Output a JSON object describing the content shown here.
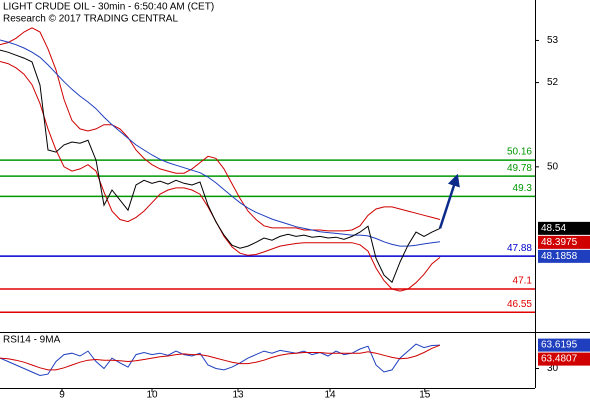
{
  "chart_data": [
    {
      "type": "line",
      "title": "LIGHT CRUDE OIL - 30min - 6:50:40 AM (CET)",
      "subtitle": "Research © 2017 TRADING CENTRAL",
      "x": [
        0,
        1,
        2,
        3,
        4,
        5,
        6,
        7,
        8,
        9,
        10,
        11,
        12,
        13,
        14,
        15,
        16,
        17,
        18,
        19,
        20,
        21,
        22,
        23,
        24,
        25,
        26,
        27,
        28,
        29,
        30,
        31,
        32,
        33,
        34,
        35,
        36,
        37,
        38,
        39,
        40,
        41,
        42,
        43,
        44,
        45,
        46,
        47,
        48,
        49,
        50,
        51,
        52,
        53,
        54,
        55
      ],
      "xlim": [
        0,
        66.875
      ],
      "xticks": [
        {
          "value": 7.75,
          "label": "9"
        },
        {
          "value": 19,
          "label": "10"
        },
        {
          "value": 29.75,
          "label": "13"
        },
        {
          "value": 41.25,
          "label": "14"
        },
        {
          "value": 53.1,
          "label": "15"
        }
      ],
      "ylim": [
        46.08,
        53.96
      ],
      "yticks": [
        53,
        52,
        50
      ],
      "series": [
        {
          "color": "#d00000",
          "values": [
            52.9,
            52.95,
            53.05,
            53.2,
            53.3,
            53.2,
            52.8,
            52.3,
            51.6,
            51.1,
            50.9,
            50.85,
            50.9,
            51.0,
            51.0,
            50.9,
            50.7,
            50.4,
            50.2,
            50.05,
            49.95,
            49.9,
            49.85,
            49.85,
            49.95,
            50.1,
            50.25,
            50.2,
            49.95,
            49.6,
            49.25,
            48.95,
            48.75,
            48.6,
            48.55,
            48.55,
            48.55,
            48.55,
            48.5,
            48.5,
            48.5,
            48.48,
            48.48,
            48.48,
            48.5,
            48.6,
            48.85,
            49.0,
            49.05,
            49.05,
            49.0,
            48.95,
            48.9,
            48.85,
            48.8,
            48.75
          ]
        },
        {
          "color": "#d00000",
          "values": [
            52.5,
            52.45,
            52.35,
            52.2,
            51.95,
            51.5,
            50.9,
            50.4,
            50.0,
            49.9,
            49.95,
            50.05,
            49.9,
            49.4,
            48.95,
            48.75,
            48.7,
            48.8,
            48.95,
            49.15,
            49.35,
            49.45,
            49.5,
            49.5,
            49.45,
            49.35,
            49.05,
            48.7,
            48.35,
            48.1,
            47.95,
            47.9,
            47.92,
            47.98,
            48.05,
            48.12,
            48.15,
            48.18,
            48.2,
            48.2,
            48.2,
            48.2,
            48.2,
            48.2,
            48.2,
            48.15,
            48.0,
            47.6,
            47.3,
            47.1,
            47.05,
            47.1,
            47.25,
            47.45,
            47.7,
            47.85
          ]
        },
        {
          "color": "#1f3fbf",
          "values": [
            53.01,
            52.96,
            52.9,
            52.82,
            52.72,
            52.6,
            52.42,
            52.22,
            52.02,
            51.84,
            51.68,
            51.54,
            51.38,
            51.18,
            51.0,
            50.84,
            50.68,
            50.52,
            50.4,
            50.28,
            50.18,
            50.1,
            50.04,
            49.98,
            49.92,
            49.86,
            49.76,
            49.62,
            49.46,
            49.3,
            49.15,
            49.02,
            48.92,
            48.84,
            48.76,
            48.7,
            48.64,
            48.58,
            48.54,
            48.5,
            48.46,
            48.44,
            48.42,
            48.4,
            48.38,
            48.38,
            48.36,
            48.3,
            48.22,
            48.16,
            48.12,
            48.12,
            48.14,
            48.17,
            48.2,
            48.22
          ]
        },
        {
          "color": "#000000",
          "values": [
            52.77,
            52.72,
            52.65,
            52.58,
            52.49,
            51.94,
            50.4,
            50.35,
            50.52,
            50.59,
            50.56,
            50.63,
            50.16,
            49.09,
            49.45,
            49.21,
            48.97,
            49.57,
            49.68,
            49.61,
            49.66,
            49.59,
            49.68,
            49.61,
            49.57,
            49.64,
            49.09,
            48.69,
            48.38,
            48.14,
            48.07,
            48.12,
            48.21,
            48.31,
            48.26,
            48.35,
            48.4,
            48.35,
            48.38,
            48.33,
            48.35,
            48.31,
            48.33,
            48.28,
            48.35,
            48.45,
            48.59,
            47.83,
            47.43,
            47.26,
            47.74,
            48.14,
            48.45,
            48.35,
            48.45,
            48.54
          ]
        }
      ],
      "levels": [
        {
          "value": 50.16,
          "color": "#009900"
        },
        {
          "value": 49.78,
          "color": "#009900"
        },
        {
          "value": 49.3,
          "color": "#009900"
        },
        {
          "value": 47.88,
          "color": "#0000cc"
        },
        {
          "value": 47.1,
          "color": "#e00000"
        },
        {
          "value": 46.55,
          "color": "#e00000"
        }
      ],
      "price_tags": [
        {
          "value": 48.54,
          "color": "#000000"
        },
        {
          "value": 48.3975,
          "color": "#d00000"
        },
        {
          "value": 48.1858,
          "color": "#1f3fbf"
        }
      ],
      "target": 49.78,
      "target_color": "#0b2a8a"
    },
    {
      "type": "line",
      "title": "RSI14 - 9MA",
      "ylim": [
        2,
        81
      ],
      "yticks": [
        30
      ],
      "series": [
        {
          "color": "#1f3fbf",
          "values": [
            45,
            40,
            35,
            30,
            25,
            20,
            22,
            40,
            50,
            52,
            48,
            55,
            40,
            30,
            45,
            38,
            32,
            50,
            53,
            50,
            52,
            49,
            55,
            50,
            48,
            52,
            35,
            30,
            28,
            32,
            38,
            45,
            50,
            55,
            52,
            56,
            54,
            52,
            55,
            50,
            53,
            48,
            55,
            50,
            52,
            58,
            62,
            35,
            25,
            28,
            45,
            55,
            65,
            60,
            63,
            63.6195
          ]
        },
        {
          "color": "#d00000",
          "values": [
            45,
            44,
            42,
            39,
            35,
            31,
            28,
            28,
            31,
            35,
            39,
            42,
            43,
            42,
            42,
            41,
            40,
            41,
            43,
            45,
            47,
            48,
            50,
            51,
            50,
            50,
            48,
            45,
            42,
            39,
            37,
            37,
            39,
            42,
            46,
            49,
            51,
            52,
            53,
            53,
            53,
            52,
            52,
            52,
            52,
            52,
            54,
            52,
            49,
            46,
            44,
            45,
            48,
            53,
            59,
            63.4807
          ]
        }
      ],
      "price_tags": [
        {
          "value": 63.6195,
          "color": "#1f3fbf"
        },
        {
          "value": 63.4807,
          "color": "#d00000"
        }
      ]
    }
  ]
}
